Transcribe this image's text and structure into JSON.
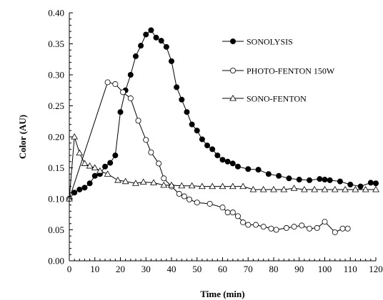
{
  "chart_data": {
    "type": "line",
    "title": "",
    "xlabel": "Time (min)",
    "ylabel": "Color (AU)",
    "xlim": [
      0,
      120
    ],
    "ylim": [
      0,
      0.4
    ],
    "xticks": [
      "0",
      "10",
      "20",
      "30",
      "40",
      "50",
      "60",
      "70",
      "80",
      "90",
      "100",
      "110",
      "120"
    ],
    "yticks": [
      "0.00",
      "0.05",
      "0.10",
      "0.15",
      "0.20",
      "0.25",
      "0.30",
      "0.35",
      "0.40"
    ],
    "grid": false,
    "legend_position": "top-right",
    "series": [
      {
        "name": "SONOLYSIS",
        "marker": "filled-circle",
        "x": [
          0,
          2,
          4,
          6,
          8,
          10,
          12,
          14,
          16,
          18,
          20,
          22,
          24,
          26,
          28,
          30,
          32,
          34,
          36,
          38,
          40,
          42,
          44,
          46,
          48,
          50,
          52,
          54,
          56,
          58,
          60,
          62,
          64,
          66,
          70,
          74,
          78,
          82,
          86,
          90,
          94,
          98,
          100,
          102,
          106,
          110,
          114,
          118,
          120
        ],
        "values": [
          0.1,
          0.11,
          0.115,
          0.118,
          0.125,
          0.137,
          0.14,
          0.152,
          0.158,
          0.17,
          0.24,
          0.275,
          0.3,
          0.33,
          0.347,
          0.365,
          0.372,
          0.36,
          0.355,
          0.345,
          0.322,
          0.28,
          0.26,
          0.24,
          0.22,
          0.21,
          0.196,
          0.186,
          0.18,
          0.17,
          0.163,
          0.16,
          0.157,
          0.152,
          0.148,
          0.147,
          0.14,
          0.137,
          0.133,
          0.131,
          0.13,
          0.132,
          0.131,
          0.13,
          0.128,
          0.123,
          0.12,
          0.126,
          0.125
        ]
      },
      {
        "name": "PHOTO-FENTON 150W",
        "marker": "open-circle",
        "x": [
          0,
          15,
          18,
          21,
          24,
          27,
          30,
          32,
          35,
          37,
          40,
          43,
          45,
          47,
          50,
          55,
          60,
          62,
          64,
          66,
          68,
          70,
          73,
          76,
          79,
          81,
          85,
          88,
          91,
          94,
          97,
          100,
          104,
          107,
          109
        ],
        "values": [
          0.1,
          0.288,
          0.285,
          0.272,
          0.262,
          0.226,
          0.195,
          0.175,
          0.157,
          0.133,
          0.12,
          0.108,
          0.104,
          0.099,
          0.094,
          0.092,
          0.086,
          0.078,
          0.078,
          0.072,
          0.062,
          0.058,
          0.058,
          0.055,
          0.052,
          0.05,
          0.053,
          0.055,
          0.057,
          0.052,
          0.053,
          0.063,
          0.046,
          0.052,
          0.052
        ]
      },
      {
        "name": "SONO-FENTON",
        "marker": "open-triangle",
        "x": [
          0,
          2,
          4,
          6,
          8,
          10,
          12,
          15,
          19,
          22,
          26,
          29,
          33,
          37,
          40,
          44,
          48,
          52,
          56,
          60,
          64,
          68,
          72,
          76,
          80,
          84,
          88,
          92,
          96,
          100,
          104,
          108,
          112,
          116,
          120
        ],
        "values": [
          0.1,
          0.2,
          0.174,
          0.157,
          0.153,
          0.15,
          0.145,
          0.14,
          0.13,
          0.128,
          0.125,
          0.127,
          0.126,
          0.122,
          0.122,
          0.121,
          0.121,
          0.12,
          0.12,
          0.12,
          0.12,
          0.12,
          0.115,
          0.115,
          0.115,
          0.115,
          0.117,
          0.115,
          0.115,
          0.115,
          0.115,
          0.115,
          0.115,
          0.115,
          0.115
        ]
      }
    ]
  }
}
